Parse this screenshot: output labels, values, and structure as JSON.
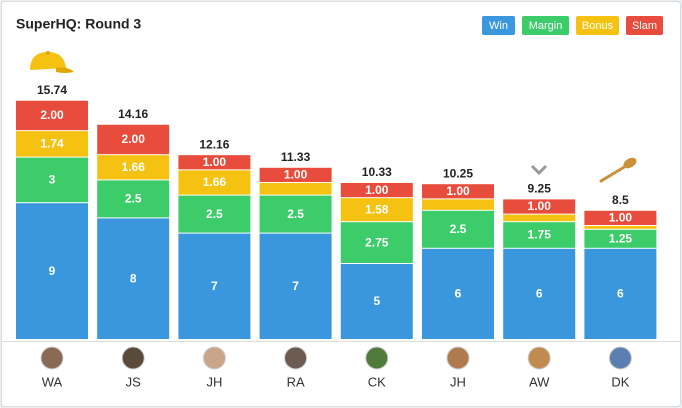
{
  "chart_data": {
    "type": "stacked_bar",
    "title": "SuperHQ: Round 3",
    "categories": [
      "WA",
      "JS",
      "JH",
      "RA",
      "CK",
      "JH",
      "AW",
      "DK"
    ],
    "series": [
      {
        "name": "Win",
        "color": "#3a97dd",
        "values": [
          9,
          8,
          7,
          7,
          5,
          6,
          6,
          6
        ]
      },
      {
        "name": "Margin",
        "color": "#3ccc6a",
        "values": [
          3,
          2.5,
          2.5,
          2.5,
          2.75,
          2.5,
          1.75,
          1.25
        ]
      },
      {
        "name": "Bonus",
        "color": "#f5c211",
        "values": [
          1.74,
          1.66,
          1.66,
          0.83,
          1.58,
          0.75,
          0.5,
          0.25
        ],
        "value_labels": [
          "1.74",
          "1.66",
          "1.66",
          null,
          "1.58",
          null,
          null,
          null
        ]
      },
      {
        "name": "Slam",
        "color": "#e74c3c",
        "values": [
          2,
          2,
          1,
          1,
          1,
          1,
          1,
          1
        ],
        "value_labels": [
          "2.00",
          "2.00",
          "1.00",
          "1.00",
          "1.00",
          "1.00",
          "1.00",
          "1.00"
        ]
      }
    ],
    "totals": [
      15.74,
      14.16,
      12.16,
      11.33,
      10.33,
      10.25,
      9.25,
      8.5
    ],
    "legend": "top-right"
  }
}
